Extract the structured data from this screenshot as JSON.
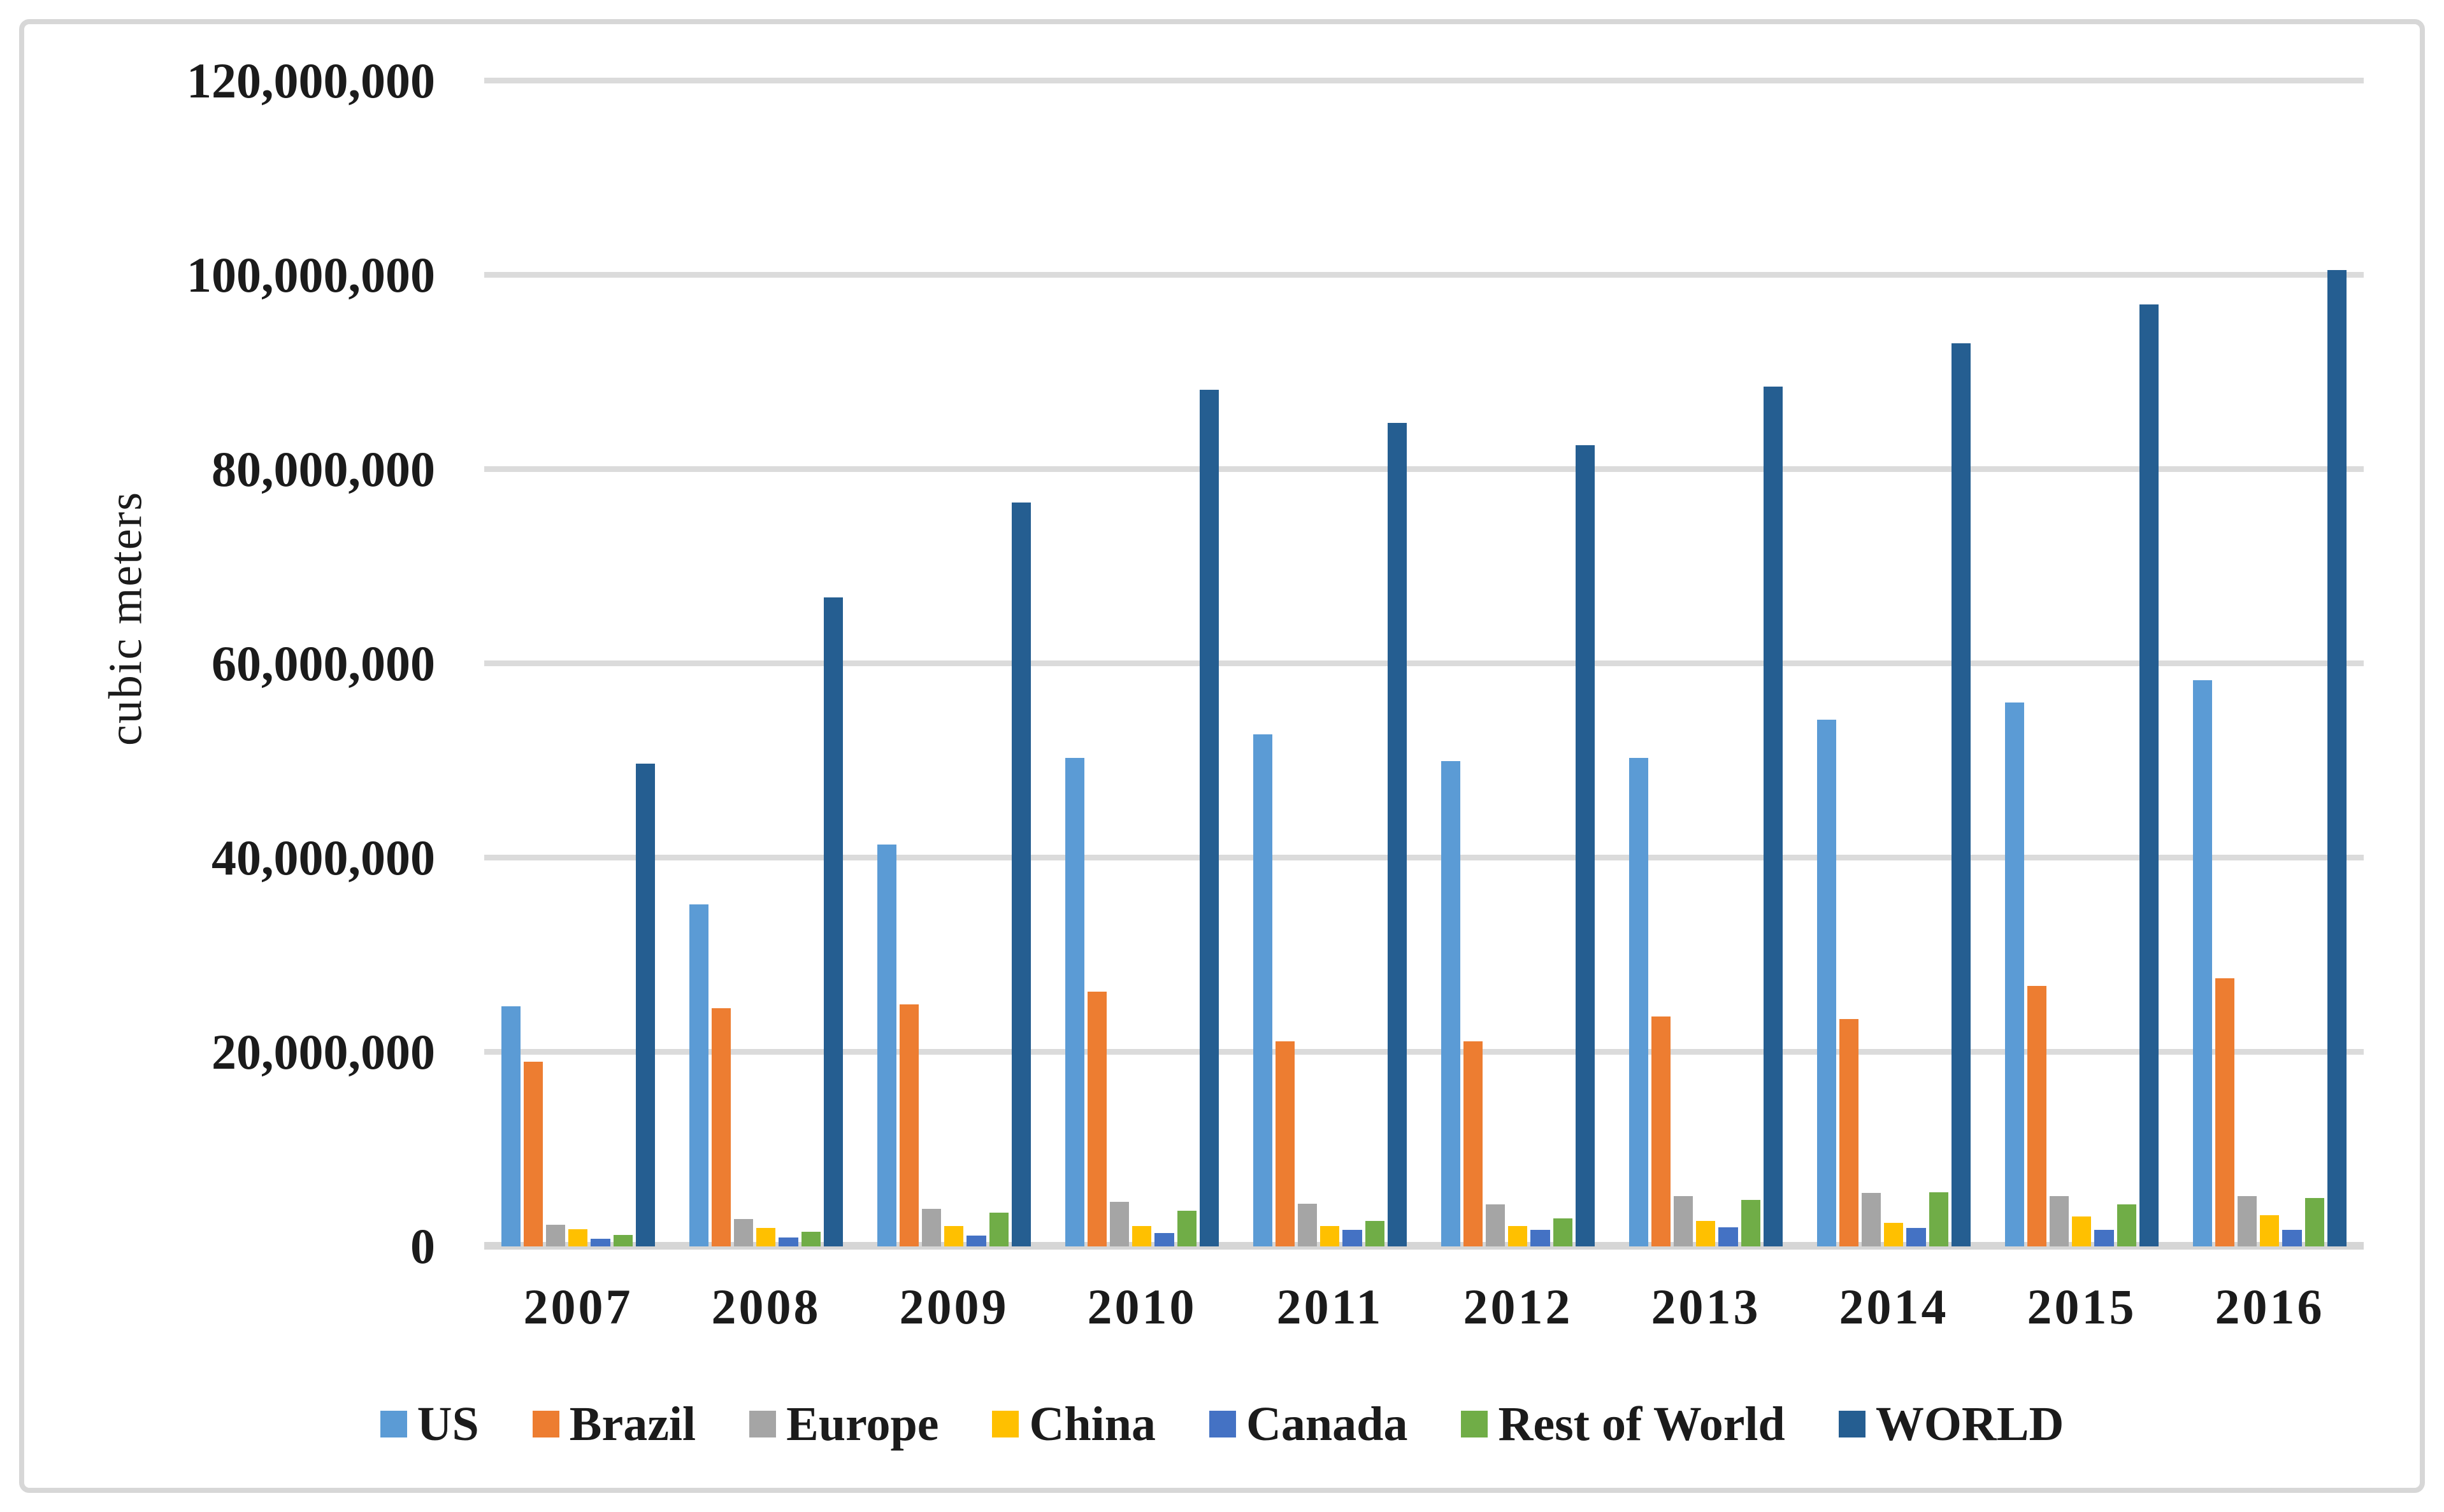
{
  "chart_data": {
    "type": "bar",
    "title": "",
    "xlabel": "",
    "ylabel": "cubic meters",
    "ylim": [
      0,
      120000000
    ],
    "ytick_step": 20000000,
    "ytick_labels": [
      "0",
      "20,000,000",
      "40,000,000",
      "60,000,000",
      "80,000,000",
      "100,000,000",
      "120,000,000"
    ],
    "grid": true,
    "legend_position": "bottom",
    "categories": [
      "2007",
      "2008",
      "2009",
      "2010",
      "2011",
      "2012",
      "2013",
      "2014",
      "2015",
      "2016"
    ],
    "series": [
      {
        "name": "US",
        "color": "#5B9BD5",
        "values": [
          24700000,
          35200000,
          41400000,
          50300000,
          52700000,
          50000000,
          50300000,
          54200000,
          56000000,
          58300000
        ]
      },
      {
        "name": "Brazil",
        "color": "#ED7D31",
        "values": [
          19000000,
          24500000,
          24900000,
          26200000,
          21100000,
          21100000,
          23700000,
          23400000,
          26800000,
          27600000
        ]
      },
      {
        "name": "Europe",
        "color": "#A5A5A5",
        "values": [
          2200000,
          2800000,
          3900000,
          4600000,
          4400000,
          4300000,
          5200000,
          5500000,
          5200000,
          5200000
        ]
      },
      {
        "name": "China",
        "color": "#FFC000",
        "values": [
          1800000,
          1900000,
          2100000,
          2100000,
          2100000,
          2100000,
          2600000,
          2400000,
          3100000,
          3200000
        ]
      },
      {
        "name": "Canada",
        "color": "#4472C4",
        "values": [
          800000,
          900000,
          1100000,
          1400000,
          1700000,
          1700000,
          2000000,
          1900000,
          1700000,
          1700000
        ]
      },
      {
        "name": "Rest of World",
        "color": "#70AD47",
        "values": [
          1200000,
          1500000,
          3500000,
          3700000,
          2600000,
          2900000,
          4800000,
          5600000,
          4300000,
          5000000
        ]
      },
      {
        "name": "WORLD",
        "color": "#255E91",
        "values": [
          49700000,
          66800000,
          76600000,
          88200000,
          84800000,
          82500000,
          88500000,
          93000000,
          97000000,
          100500000
        ]
      }
    ],
    "colors": {
      "gridline": "#DBDBDB",
      "axis_line": "#D6D6D6",
      "frame_border": "#D7D7D7",
      "text": "#1B1B1B",
      "background": "#FFFFFF"
    }
  }
}
